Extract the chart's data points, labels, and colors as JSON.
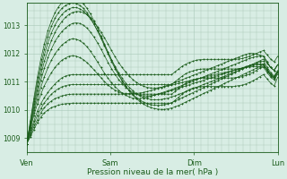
{
  "bg_color": "#d8ede4",
  "grid_color": "#a8c8b8",
  "line_color": "#1a5c1a",
  "xlabel": "Pression niveau de la mer( hPa )",
  "xlim": [
    0,
    72
  ],
  "ylim": [
    1008.5,
    1013.8
  ],
  "yticks": [
    1009,
    1010,
    1011,
    1012,
    1013
  ],
  "xtick_positions": [
    0,
    24,
    48,
    72
  ],
  "xtick_labels": [
    "Ven",
    "Sam",
    "Dim",
    "Lun"
  ],
  "series": [
    [
      1008.8,
      1009.05,
      1009.3,
      1009.55,
      1009.75,
      1009.9,
      1010.0,
      1010.08,
      1010.13,
      1010.17,
      1010.2,
      1010.22,
      1010.23,
      1010.24,
      1010.24,
      1010.24,
      1010.24,
      1010.24,
      1010.24,
      1010.24,
      1010.24,
      1010.24,
      1010.24,
      1010.24,
      1010.24,
      1010.24,
      1010.24,
      1010.24,
      1010.24,
      1010.24,
      1010.24,
      1010.24,
      1010.24,
      1010.24,
      1010.24,
      1010.24,
      1010.24,
      1010.24,
      1010.24,
      1010.24,
      1010.24,
      1010.24,
      1010.35,
      1010.45,
      1010.56,
      1010.65,
      1010.72,
      1010.77,
      1010.8,
      1010.82,
      1010.83,
      1010.83,
      1010.83,
      1010.83,
      1010.83,
      1010.83,
      1010.83,
      1010.83,
      1010.83,
      1010.84,
      1010.86,
      1010.88,
      1010.92,
      1010.97,
      1011.03,
      1011.1,
      1011.18,
      1011.25,
      1011.1,
      1010.95,
      1010.85,
      1011.15
    ],
    [
      1008.8,
      1009.1,
      1009.4,
      1009.65,
      1009.9,
      1010.08,
      1010.22,
      1010.32,
      1010.4,
      1010.45,
      1010.5,
      1010.53,
      1010.55,
      1010.56,
      1010.56,
      1010.56,
      1010.56,
      1010.56,
      1010.56,
      1010.56,
      1010.56,
      1010.56,
      1010.56,
      1010.56,
      1010.56,
      1010.56,
      1010.56,
      1010.56,
      1010.56,
      1010.56,
      1010.56,
      1010.56,
      1010.56,
      1010.56,
      1010.56,
      1010.56,
      1010.56,
      1010.56,
      1010.56,
      1010.56,
      1010.56,
      1010.56,
      1010.65,
      1010.75,
      1010.86,
      1010.95,
      1011.02,
      1011.07,
      1011.1,
      1011.12,
      1011.13,
      1011.13,
      1011.13,
      1011.13,
      1011.13,
      1011.13,
      1011.13,
      1011.13,
      1011.13,
      1011.14,
      1011.16,
      1011.18,
      1011.22,
      1011.27,
      1011.33,
      1011.4,
      1011.48,
      1011.55,
      1011.4,
      1011.25,
      1011.15,
      1011.35
    ],
    [
      1008.8,
      1009.15,
      1009.5,
      1009.8,
      1010.05,
      1010.25,
      1010.42,
      1010.56,
      1010.67,
      1010.75,
      1010.82,
      1010.86,
      1010.89,
      1010.9,
      1010.9,
      1010.9,
      1010.9,
      1010.9,
      1010.9,
      1010.9,
      1010.9,
      1010.9,
      1010.9,
      1010.9,
      1010.9,
      1010.9,
      1010.9,
      1010.9,
      1010.9,
      1010.9,
      1010.9,
      1010.9,
      1010.9,
      1010.9,
      1010.9,
      1010.9,
      1010.9,
      1010.9,
      1010.9,
      1010.9,
      1010.9,
      1010.9,
      1011.0,
      1011.1,
      1011.2,
      1011.28,
      1011.34,
      1011.38,
      1011.42,
      1011.44,
      1011.45,
      1011.45,
      1011.45,
      1011.45,
      1011.45,
      1011.45,
      1011.45,
      1011.45,
      1011.45,
      1011.45,
      1011.46,
      1011.48,
      1011.52,
      1011.57,
      1011.62,
      1011.68,
      1011.74,
      1011.8,
      1011.65,
      1011.5,
      1011.4,
      1011.6
    ],
    [
      1008.8,
      1009.2,
      1009.6,
      1009.95,
      1010.22,
      1010.44,
      1010.62,
      1010.78,
      1010.92,
      1011.04,
      1011.14,
      1011.2,
      1011.24,
      1011.25,
      1011.25,
      1011.25,
      1011.25,
      1011.25,
      1011.25,
      1011.25,
      1011.25,
      1011.25,
      1011.25,
      1011.25,
      1011.25,
      1011.25,
      1011.25,
      1011.25,
      1011.25,
      1011.25,
      1011.25,
      1011.25,
      1011.25,
      1011.25,
      1011.25,
      1011.25,
      1011.25,
      1011.25,
      1011.25,
      1011.25,
      1011.25,
      1011.25,
      1011.35,
      1011.45,
      1011.55,
      1011.62,
      1011.68,
      1011.72,
      1011.76,
      1011.78,
      1011.79,
      1011.79,
      1011.79,
      1011.79,
      1011.79,
      1011.79,
      1011.79,
      1011.79,
      1011.79,
      1011.79,
      1011.8,
      1011.82,
      1011.86,
      1011.9,
      1011.95,
      1012.0,
      1012.06,
      1012.1,
      1011.95,
      1011.8,
      1011.7,
      1011.9
    ],
    [
      1008.8,
      1009.3,
      1009.8,
      1010.2,
      1010.56,
      1010.86,
      1011.1,
      1011.32,
      1011.5,
      1011.65,
      1011.76,
      1011.84,
      1011.9,
      1011.92,
      1011.9,
      1011.85,
      1011.78,
      1011.68,
      1011.56,
      1011.42,
      1011.28,
      1011.14,
      1011.0,
      1010.88,
      1010.78,
      1010.7,
      1010.64,
      1010.6,
      1010.58,
      1010.58,
      1010.58,
      1010.58,
      1010.6,
      1010.62,
      1010.65,
      1010.68,
      1010.72,
      1010.76,
      1010.8,
      1010.84,
      1010.88,
      1010.92,
      1010.97,
      1011.02,
      1011.07,
      1011.12,
      1011.17,
      1011.22,
      1011.27,
      1011.32,
      1011.37,
      1011.42,
      1011.47,
      1011.52,
      1011.57,
      1011.62,
      1011.67,
      1011.72,
      1011.77,
      1011.82,
      1011.87,
      1011.92,
      1011.97,
      1012.0,
      1012.0,
      1011.98,
      1011.94,
      1011.9,
      1011.7,
      1011.5,
      1011.4,
      1011.6
    ],
    [
      1008.8,
      1009.35,
      1009.9,
      1010.38,
      1010.8,
      1011.18,
      1011.5,
      1011.76,
      1011.98,
      1012.16,
      1012.3,
      1012.4,
      1012.48,
      1012.52,
      1012.5,
      1012.45,
      1012.36,
      1012.24,
      1012.08,
      1011.9,
      1011.7,
      1011.5,
      1011.3,
      1011.12,
      1010.96,
      1010.82,
      1010.7,
      1010.6,
      1010.52,
      1010.46,
      1010.42,
      1010.4,
      1010.4,
      1010.42,
      1010.45,
      1010.48,
      1010.52,
      1010.56,
      1010.6,
      1010.64,
      1010.68,
      1010.72,
      1010.77,
      1010.82,
      1010.87,
      1010.92,
      1010.97,
      1011.02,
      1011.07,
      1011.12,
      1011.17,
      1011.22,
      1011.27,
      1011.32,
      1011.37,
      1011.42,
      1011.47,
      1011.52,
      1011.57,
      1011.62,
      1011.67,
      1011.72,
      1011.77,
      1011.82,
      1011.86,
      1011.89,
      1011.9,
      1011.9,
      1011.7,
      1011.5,
      1011.4,
      1011.6
    ],
    [
      1008.8,
      1009.4,
      1010.0,
      1010.55,
      1011.05,
      1011.48,
      1011.85,
      1012.16,
      1012.42,
      1012.62,
      1012.78,
      1012.9,
      1013.0,
      1013.06,
      1013.08,
      1013.06,
      1013.0,
      1012.9,
      1012.76,
      1012.58,
      1012.38,
      1012.16,
      1011.92,
      1011.68,
      1011.46,
      1011.26,
      1011.08,
      1010.93,
      1010.8,
      1010.7,
      1010.62,
      1010.56,
      1010.52,
      1010.5,
      1010.5,
      1010.5,
      1010.52,
      1010.55,
      1010.58,
      1010.61,
      1010.65,
      1010.69,
      1010.73,
      1010.77,
      1010.81,
      1010.85,
      1010.89,
      1010.93,
      1010.97,
      1011.01,
      1011.05,
      1011.09,
      1011.13,
      1011.17,
      1011.21,
      1011.25,
      1011.29,
      1011.33,
      1011.37,
      1011.41,
      1011.45,
      1011.49,
      1011.53,
      1011.57,
      1011.6,
      1011.62,
      1011.63,
      1011.63,
      1011.45,
      1011.27,
      1011.17,
      1011.37
    ],
    [
      1008.8,
      1009.45,
      1010.1,
      1010.7,
      1011.25,
      1011.72,
      1012.12,
      1012.46,
      1012.74,
      1012.96,
      1013.14,
      1013.28,
      1013.38,
      1013.45,
      1013.48,
      1013.48,
      1013.44,
      1013.37,
      1013.26,
      1013.12,
      1012.95,
      1012.76,
      1012.55,
      1012.33,
      1012.1,
      1011.88,
      1011.68,
      1011.5,
      1011.34,
      1011.2,
      1011.08,
      1010.98,
      1010.9,
      1010.84,
      1010.8,
      1010.78,
      1010.77,
      1010.78,
      1010.8,
      1010.82,
      1010.85,
      1010.88,
      1010.91,
      1010.94,
      1010.97,
      1011.0,
      1011.03,
      1011.06,
      1011.09,
      1011.12,
      1011.15,
      1011.18,
      1011.21,
      1011.24,
      1011.27,
      1011.3,
      1011.33,
      1011.36,
      1011.39,
      1011.42,
      1011.45,
      1011.48,
      1011.5,
      1011.52,
      1011.53,
      1011.53,
      1011.52,
      1011.5,
      1011.33,
      1011.16,
      1011.06,
      1011.26
    ],
    [
      1008.8,
      1009.5,
      1010.2,
      1010.85,
      1011.44,
      1011.95,
      1012.38,
      1012.73,
      1013.0,
      1013.22,
      1013.38,
      1013.5,
      1013.58,
      1013.62,
      1013.62,
      1013.58,
      1013.5,
      1013.38,
      1013.22,
      1013.03,
      1012.8,
      1012.56,
      1012.3,
      1012.04,
      1011.78,
      1011.54,
      1011.32,
      1011.12,
      1010.95,
      1010.8,
      1010.68,
      1010.58,
      1010.5,
      1010.44,
      1010.4,
      1010.37,
      1010.36,
      1010.36,
      1010.37,
      1010.39,
      1010.42,
      1010.46,
      1010.5,
      1010.55,
      1010.6,
      1010.65,
      1010.7,
      1010.75,
      1010.8,
      1010.85,
      1010.9,
      1010.95,
      1011.0,
      1011.05,
      1011.1,
      1011.15,
      1011.2,
      1011.25,
      1011.3,
      1011.35,
      1011.4,
      1011.45,
      1011.5,
      1011.55,
      1011.58,
      1011.6,
      1011.6,
      1011.59,
      1011.4,
      1011.21,
      1011.11,
      1011.31
    ],
    [
      1008.8,
      1009.55,
      1010.3,
      1011.0,
      1011.6,
      1012.15,
      1012.6,
      1012.96,
      1013.24,
      1013.45,
      1013.6,
      1013.7,
      1013.76,
      1013.78,
      1013.76,
      1013.7,
      1013.6,
      1013.45,
      1013.27,
      1013.05,
      1012.8,
      1012.54,
      1012.26,
      1011.98,
      1011.71,
      1011.46,
      1011.23,
      1011.02,
      1010.84,
      1010.68,
      1010.55,
      1010.44,
      1010.35,
      1010.28,
      1010.23,
      1010.19,
      1010.17,
      1010.16,
      1010.17,
      1010.19,
      1010.22,
      1010.26,
      1010.31,
      1010.37,
      1010.43,
      1010.49,
      1010.55,
      1010.61,
      1010.67,
      1010.73,
      1010.79,
      1010.85,
      1010.91,
      1010.97,
      1011.03,
      1011.09,
      1011.15,
      1011.21,
      1011.27,
      1011.33,
      1011.39,
      1011.45,
      1011.51,
      1011.57,
      1011.62,
      1011.67,
      1011.7,
      1011.72,
      1011.52,
      1011.32,
      1011.2,
      1011.4
    ],
    [
      1008.8,
      1009.6,
      1010.4,
      1011.15,
      1011.8,
      1012.35,
      1012.8,
      1013.16,
      1013.44,
      1013.65,
      1013.8,
      1013.9,
      1013.96,
      1013.98,
      1013.96,
      1013.88,
      1013.76,
      1013.6,
      1013.4,
      1013.16,
      1012.9,
      1012.62,
      1012.33,
      1012.04,
      1011.76,
      1011.5,
      1011.26,
      1011.04,
      1010.85,
      1010.68,
      1010.53,
      1010.4,
      1010.3,
      1010.21,
      1010.14,
      1010.09,
      1010.05,
      1010.03,
      1010.02,
      1010.02,
      1010.04,
      1010.07,
      1010.11,
      1010.16,
      1010.22,
      1010.28,
      1010.34,
      1010.4,
      1010.46,
      1010.52,
      1010.58,
      1010.64,
      1010.7,
      1010.76,
      1010.82,
      1010.88,
      1010.94,
      1011.0,
      1011.06,
      1011.12,
      1011.18,
      1011.24,
      1011.3,
      1011.36,
      1011.42,
      1011.48,
      1011.54,
      1011.6,
      1011.42,
      1011.24,
      1011.12,
      1011.32
    ]
  ]
}
